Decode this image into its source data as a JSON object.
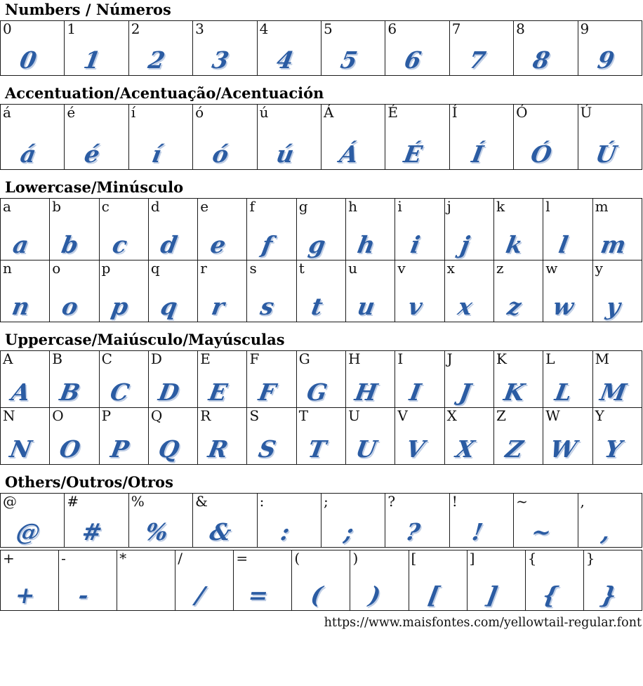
{
  "page": {
    "footer_url": "https://www.maisfontes.com/yellowtail-regular.font"
  },
  "colors": {
    "glyph_blue": "#2b5ca3",
    "glyph_shadow": "#8ca6d0",
    "border": "#1b1b1b",
    "label_text": "#111111"
  },
  "sections": [
    {
      "id": "numbers",
      "title": "Numbers / Números",
      "tables": [
        {
          "columns": 10,
          "rows": [
            [
              "0",
              "1",
              "2",
              "3",
              "4",
              "5",
              "6",
              "7",
              "8",
              "9"
            ]
          ]
        }
      ]
    },
    {
      "id": "accentuation",
      "title": "Accentuation/Acentuação/Acentuación",
      "tables": [
        {
          "columns": 10,
          "rows": [
            [
              "á",
              "é",
              "í",
              "ó",
              "ú",
              "Á",
              "É",
              "Í",
              "Ó",
              "Ú"
            ]
          ]
        }
      ]
    },
    {
      "id": "lowercase",
      "title": "Lowercase/Minúsculo",
      "tables": [
        {
          "columns": 13,
          "rows": [
            [
              "a",
              "b",
              "c",
              "d",
              "e",
              "f",
              "g",
              "h",
              "i",
              "j",
              "k",
              "l",
              "m"
            ],
            [
              "n",
              "o",
              "p",
              "q",
              "r",
              "s",
              "t",
              "u",
              "v",
              "x",
              "z",
              "w",
              "y"
            ]
          ]
        }
      ]
    },
    {
      "id": "uppercase",
      "title": "Uppercase/Maiúsculo/Mayúsculas",
      "tables": [
        {
          "columns": 13,
          "rows": [
            [
              "A",
              "B",
              "C",
              "D",
              "E",
              "F",
              "G",
              "H",
              "I",
              "J",
              "K",
              "L",
              "M"
            ],
            [
              "N",
              "O",
              "P",
              "Q",
              "R",
              "S",
              "T",
              "U",
              "V",
              "X",
              "Z",
              "W",
              "Y"
            ]
          ]
        }
      ]
    },
    {
      "id": "others",
      "title": "Others/Outros/Otros",
      "tables": [
        {
          "columns": 10,
          "rows": [
            [
              "@",
              "#",
              "%",
              "&",
              ":",
              ";",
              "?",
              "!",
              "~",
              ","
            ]
          ]
        },
        {
          "columns": 11,
          "rows": [
            [
              "+",
              "-",
              {
                "label": "*",
                "glyph": ""
              },
              "/",
              "=",
              "(",
              ")",
              "[",
              "]",
              "{",
              "}"
            ]
          ]
        }
      ]
    }
  ]
}
